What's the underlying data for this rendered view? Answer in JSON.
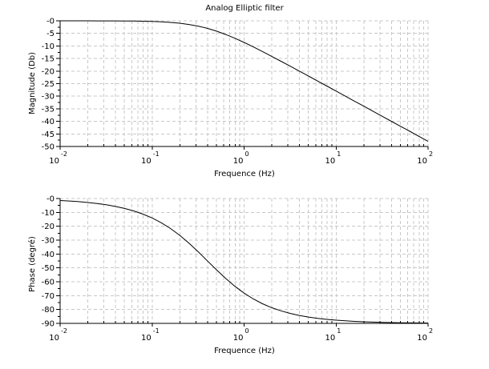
{
  "title": "Analog Elliptic filter",
  "colors": {
    "background": "#ffffff",
    "grid": "#c8c8c8",
    "axis": "#000000",
    "curve": "#000000",
    "text": "#000000"
  },
  "chart_data": [
    {
      "type": "line",
      "name": "magnitude-response",
      "title": "Analog Elliptic filter",
      "xlabel": "Frequence (Hz)",
      "ylabel": "Magnitude (Db)",
      "xscale": "log",
      "xlim": [
        0.01,
        100
      ],
      "ylim": [
        -50,
        0
      ],
      "grid": true,
      "legend": "none",
      "x_tick_base": "10",
      "x_tick_exponents": [
        "-2",
        "-1",
        "0",
        "1",
        "2"
      ],
      "y_tick_labels": [
        "-0",
        "-5",
        "-10",
        "-15",
        "-20",
        "-25",
        "-30",
        "-35",
        "-40",
        "-45",
        "-50"
      ],
      "x": [
        0.01,
        0.01259,
        0.01585,
        0.01995,
        0.02512,
        0.03162,
        0.03981,
        0.05012,
        0.0631,
        0.07943,
        0.1,
        0.1259,
        0.1585,
        0.1995,
        0.2512,
        0.3162,
        0.3981,
        0.5012,
        0.631,
        0.7943,
        1,
        1.259,
        1.585,
        1.995,
        2.512,
        3.162,
        3.981,
        5.012,
        6.31,
        7.943,
        10,
        12.59,
        15.85,
        19.95,
        25.12,
        31.62,
        39.81,
        50.12,
        63.1,
        79.43,
        100
      ],
      "y": [
        -0.0,
        -0.0,
        -0.01,
        -0.01,
        -0.02,
        -0.03,
        -0.04,
        -0.07,
        -0.11,
        -0.17,
        -0.26,
        -0.41,
        -0.63,
        -0.97,
        -1.45,
        -2.11,
        -2.99,
        -4.1,
        -5.43,
        -6.94,
        -8.6,
        -10.38,
        -12.23,
        -14.13,
        -16.07,
        -18.03,
        -20.0,
        -21.99,
        -23.97,
        -25.97,
        -27.97,
        -29.96,
        -31.96,
        -33.96,
        -35.96,
        -37.96,
        -39.96,
        -41.96,
        -43.96,
        -45.96,
        -47.96
      ]
    },
    {
      "type": "line",
      "name": "phase-response",
      "title": "",
      "xlabel": "Frequence (Hz)",
      "ylabel": "Phase (degré)",
      "xscale": "log",
      "xlim": [
        0.01,
        100
      ],
      "ylim": [
        -90,
        0
      ],
      "grid": true,
      "legend": "none",
      "x_tick_base": "10",
      "x_tick_exponents": [
        "-2",
        "-1",
        "0",
        "1",
        "2"
      ],
      "y_tick_labels": [
        "-0",
        "-10",
        "-20",
        "-30",
        "-40",
        "-50",
        "-60",
        "-70",
        "-80",
        "-90"
      ],
      "x": [
        0.01,
        0.01259,
        0.01585,
        0.01995,
        0.02512,
        0.03162,
        0.03981,
        0.05012,
        0.0631,
        0.07943,
        0.1,
        0.1259,
        0.1585,
        0.1995,
        0.2512,
        0.3162,
        0.3981,
        0.5012,
        0.631,
        0.7943,
        1,
        1.259,
        1.585,
        1.995,
        2.512,
        3.162,
        3.981,
        5.012,
        6.31,
        7.943,
        10,
        12.59,
        15.85,
        19.95,
        25.12,
        31.62,
        39.81,
        50.12,
        63.1,
        79.43,
        100
      ],
      "y": [
        -1.43,
        -1.8,
        -2.27,
        -2.86,
        -3.59,
        -4.52,
        -5.69,
        -7.14,
        -8.96,
        -11.23,
        -14.04,
        -17.47,
        -21.62,
        -26.51,
        -32.13,
        -38.33,
        -44.86,
        -51.41,
        -57.62,
        -63.27,
        -68.2,
        -72.38,
        -75.84,
        -78.67,
        -80.95,
        -82.79,
        -84.26,
        -85.44,
        -86.37,
        -87.12,
        -87.71,
        -88.18,
        -88.55,
        -88.85,
        -89.09,
        -89.28,
        -89.42,
        -89.54,
        -89.64,
        -89.71,
        -89.77
      ]
    }
  ]
}
